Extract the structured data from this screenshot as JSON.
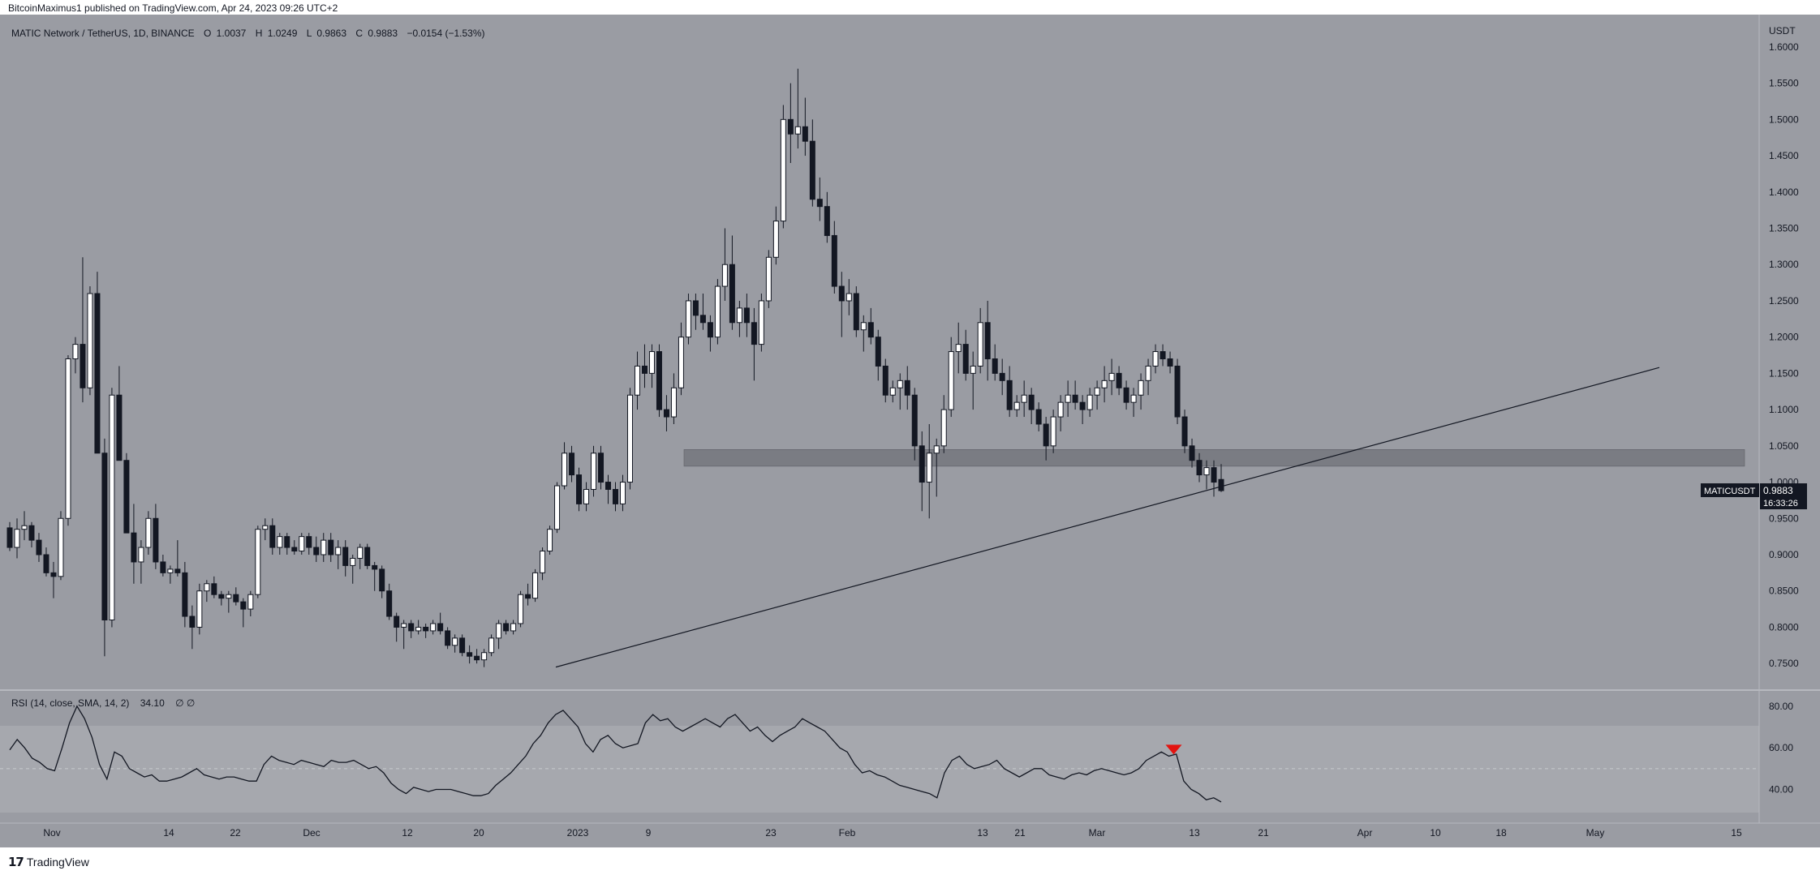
{
  "publisher": "BitcoinMaximus1 published on TradingView.com, Apr 24, 2023 09:26 UTC+2",
  "footer_brand": "TradingView",
  "icon": "tradingview-logo-icon",
  "colors": {
    "background": "#9a9ca3",
    "bull_body": "#ffffff",
    "bear_body": "#131722",
    "wick": "#131722",
    "rsi_band": "#a6a8ae",
    "support_zone": "#6f7178",
    "rsi_marker": "#e3130f"
  },
  "price_header": {
    "symbol_name": "MATIC Network / TetherUS, 1D, BINANCE",
    "o_label": "O",
    "o_value": "1.0037",
    "h_label": "H",
    "h_value": "1.0249",
    "l_label": "L",
    "l_value": "0.9863",
    "c_label": "C",
    "c_value": "0.9883",
    "change": "−0.0154 (−1.53%)"
  },
  "rsi_header": {
    "label": "RSI (14, close, SMA, 14, 2)",
    "value": "34.10",
    "extra": "∅  ∅"
  },
  "price_tag": {
    "symbol": "MATICUSDT",
    "price": "0.9883",
    "countdown": "16:33:26"
  },
  "chart_data": [
    {
      "type": "candlestick",
      "currency": "USDT",
      "ylim": [
        0.72,
        1.62
      ],
      "y_ticks": [
        "1.6000",
        "1.5500",
        "1.5000",
        "1.4500",
        "1.4000",
        "1.3500",
        "1.3000",
        "1.2500",
        "1.2000",
        "1.1500",
        "1.1000",
        "1.0500",
        "1.0000",
        "0.9500",
        "0.9000",
        "0.8500",
        "0.8000",
        "0.7500"
      ],
      "x_ticks": [
        "Nov",
        "14",
        "22",
        "Dec",
        "12",
        "20",
        "2023",
        "9",
        "23",
        "Feb",
        "13",
        "21",
        "Mar",
        "13",
        "21",
        "Apr",
        "10",
        "18",
        "May",
        "15"
      ],
      "support_zone": [
        1.022,
        1.045
      ],
      "trendline": {
        "from": [
          0,
          0.745
        ],
        "to": [
          1,
          1.158
        ]
      },
      "ohlc": [
        [
          0.937,
          0.945,
          0.905,
          0.91
        ],
        [
          0.91,
          0.95,
          0.895,
          0.935
        ],
        [
          0.935,
          0.96,
          0.92,
          0.94
        ],
        [
          0.94,
          0.945,
          0.91,
          0.92
        ],
        [
          0.92,
          0.93,
          0.89,
          0.9
        ],
        [
          0.9,
          0.91,
          0.87,
          0.875
        ],
        [
          0.875,
          0.89,
          0.84,
          0.87
        ],
        [
          0.87,
          0.96,
          0.865,
          0.95
        ],
        [
          0.95,
          1.175,
          0.94,
          1.17
        ],
        [
          1.17,
          1.2,
          1.15,
          1.19
        ],
        [
          1.19,
          1.31,
          1.11,
          1.13
        ],
        [
          1.13,
          1.27,
          1.12,
          1.26
        ],
        [
          1.26,
          1.29,
          1.04,
          1.04
        ],
        [
          1.04,
          1.06,
          0.76,
          0.81
        ],
        [
          0.81,
          1.13,
          0.8,
          1.12
        ],
        [
          1.12,
          1.16,
          1.03,
          1.03
        ],
        [
          1.03,
          1.04,
          0.93,
          0.93
        ],
        [
          0.93,
          0.97,
          0.86,
          0.89
        ],
        [
          0.89,
          0.92,
          0.86,
          0.91
        ],
        [
          0.91,
          0.96,
          0.9,
          0.95
        ],
        [
          0.95,
          0.97,
          0.88,
          0.89
        ],
        [
          0.89,
          0.9,
          0.87,
          0.875
        ],
        [
          0.875,
          0.885,
          0.86,
          0.88
        ],
        [
          0.88,
          0.92,
          0.87,
          0.875
        ],
        [
          0.875,
          0.89,
          0.8,
          0.815
        ],
        [
          0.815,
          0.83,
          0.77,
          0.8
        ],
        [
          0.8,
          0.86,
          0.79,
          0.85
        ],
        [
          0.85,
          0.865,
          0.835,
          0.86
        ],
        [
          0.86,
          0.87,
          0.84,
          0.845
        ],
        [
          0.845,
          0.85,
          0.83,
          0.84
        ],
        [
          0.84,
          0.85,
          0.82,
          0.845
        ],
        [
          0.845,
          0.855,
          0.83,
          0.835
        ],
        [
          0.835,
          0.84,
          0.8,
          0.825
        ],
        [
          0.825,
          0.85,
          0.815,
          0.845
        ],
        [
          0.845,
          0.94,
          0.84,
          0.935
        ],
        [
          0.935,
          0.95,
          0.92,
          0.94
        ],
        [
          0.94,
          0.95,
          0.9,
          0.91
        ],
        [
          0.91,
          0.93,
          0.9,
          0.925
        ],
        [
          0.925,
          0.93,
          0.9,
          0.91
        ],
        [
          0.91,
          0.92,
          0.9,
          0.905
        ],
        [
          0.905,
          0.93,
          0.9,
          0.925
        ],
        [
          0.925,
          0.93,
          0.9,
          0.91
        ],
        [
          0.91,
          0.925,
          0.89,
          0.9
        ],
        [
          0.9,
          0.93,
          0.89,
          0.92
        ],
        [
          0.92,
          0.93,
          0.89,
          0.9
        ],
        [
          0.9,
          0.92,
          0.88,
          0.91
        ],
        [
          0.91,
          0.92,
          0.87,
          0.885
        ],
        [
          0.885,
          0.9,
          0.86,
          0.895
        ],
        [
          0.895,
          0.915,
          0.88,
          0.91
        ],
        [
          0.91,
          0.915,
          0.88,
          0.885
        ],
        [
          0.885,
          0.89,
          0.85,
          0.88
        ],
        [
          0.88,
          0.885,
          0.84,
          0.85
        ],
        [
          0.85,
          0.86,
          0.81,
          0.815
        ],
        [
          0.815,
          0.82,
          0.78,
          0.8
        ],
        [
          0.8,
          0.81,
          0.77,
          0.805
        ],
        [
          0.805,
          0.81,
          0.785,
          0.795
        ],
        [
          0.795,
          0.81,
          0.79,
          0.8
        ],
        [
          0.8,
          0.805,
          0.785,
          0.795
        ],
        [
          0.795,
          0.81,
          0.79,
          0.805
        ],
        [
          0.805,
          0.82,
          0.79,
          0.795
        ],
        [
          0.795,
          0.8,
          0.77,
          0.775
        ],
        [
          0.775,
          0.79,
          0.765,
          0.785
        ],
        [
          0.785,
          0.79,
          0.76,
          0.765
        ],
        [
          0.765,
          0.775,
          0.75,
          0.76
        ],
        [
          0.76,
          0.77,
          0.75,
          0.755
        ],
        [
          0.755,
          0.77,
          0.745,
          0.765
        ],
        [
          0.765,
          0.79,
          0.76,
          0.785
        ],
        [
          0.785,
          0.81,
          0.77,
          0.805
        ],
        [
          0.805,
          0.81,
          0.79,
          0.795
        ],
        [
          0.795,
          0.81,
          0.79,
          0.805
        ],
        [
          0.805,
          0.85,
          0.8,
          0.845
        ],
        [
          0.845,
          0.86,
          0.83,
          0.84
        ],
        [
          0.84,
          0.88,
          0.835,
          0.875
        ],
        [
          0.875,
          0.91,
          0.865,
          0.905
        ],
        [
          0.905,
          0.94,
          0.9,
          0.935
        ],
        [
          0.935,
          1.0,
          0.93,
          0.995
        ],
        [
          0.995,
          1.055,
          0.99,
          1.04
        ],
        [
          1.04,
          1.05,
          1.0,
          1.01
        ],
        [
          1.01,
          1.02,
          0.96,
          0.97
        ],
        [
          0.97,
          1.0,
          0.96,
          0.99
        ],
        [
          0.99,
          1.05,
          0.98,
          1.04
        ],
        [
          1.04,
          1.05,
          0.99,
          1.0
        ],
        [
          1.0,
          1.01,
          0.97,
          0.99
        ],
        [
          0.99,
          1.0,
          0.96,
          0.97
        ],
        [
          0.97,
          1.01,
          0.96,
          1.0
        ],
        [
          1.0,
          1.13,
          0.99,
          1.12
        ],
        [
          1.12,
          1.18,
          1.1,
          1.16
        ],
        [
          1.16,
          1.19,
          1.13,
          1.15
        ],
        [
          1.15,
          1.19,
          1.13,
          1.18
        ],
        [
          1.18,
          1.19,
          1.09,
          1.1
        ],
        [
          1.1,
          1.12,
          1.07,
          1.09
        ],
        [
          1.09,
          1.15,
          1.08,
          1.13
        ],
        [
          1.13,
          1.22,
          1.12,
          1.2
        ],
        [
          1.2,
          1.26,
          1.19,
          1.25
        ],
        [
          1.25,
          1.26,
          1.21,
          1.23
        ],
        [
          1.23,
          1.26,
          1.21,
          1.22
        ],
        [
          1.22,
          1.23,
          1.18,
          1.2
        ],
        [
          1.2,
          1.28,
          1.19,
          1.27
        ],
        [
          1.27,
          1.35,
          1.25,
          1.3
        ],
        [
          1.3,
          1.34,
          1.21,
          1.22
        ],
        [
          1.22,
          1.25,
          1.2,
          1.24
        ],
        [
          1.24,
          1.26,
          1.2,
          1.22
        ],
        [
          1.22,
          1.24,
          1.14,
          1.19
        ],
        [
          1.19,
          1.26,
          1.18,
          1.25
        ],
        [
          1.25,
          1.32,
          1.24,
          1.31
        ],
        [
          1.31,
          1.38,
          1.3,
          1.36
        ],
        [
          1.36,
          1.52,
          1.35,
          1.5
        ],
        [
          1.5,
          1.55,
          1.44,
          1.48
        ],
        [
          1.48,
          1.57,
          1.46,
          1.49
        ],
        [
          1.49,
          1.53,
          1.45,
          1.47
        ],
        [
          1.47,
          1.5,
          1.38,
          1.39
        ],
        [
          1.39,
          1.42,
          1.36,
          1.38
        ],
        [
          1.38,
          1.4,
          1.33,
          1.34
        ],
        [
          1.34,
          1.36,
          1.26,
          1.27
        ],
        [
          1.27,
          1.29,
          1.2,
          1.25
        ],
        [
          1.25,
          1.28,
          1.23,
          1.26
        ],
        [
          1.26,
          1.27,
          1.2,
          1.21
        ],
        [
          1.21,
          1.23,
          1.18,
          1.22
        ],
        [
          1.22,
          1.24,
          1.19,
          1.2
        ],
        [
          1.2,
          1.21,
          1.14,
          1.16
        ],
        [
          1.16,
          1.17,
          1.11,
          1.12
        ],
        [
          1.12,
          1.14,
          1.11,
          1.13
        ],
        [
          1.13,
          1.15,
          1.1,
          1.14
        ],
        [
          1.14,
          1.16,
          1.1,
          1.12
        ],
        [
          1.12,
          1.13,
          1.03,
          1.05
        ],
        [
          1.05,
          1.07,
          0.96,
          1.0
        ],
        [
          1.0,
          1.08,
          0.95,
          1.04
        ],
        [
          1.04,
          1.06,
          0.98,
          1.05
        ],
        [
          1.05,
          1.12,
          1.04,
          1.1
        ],
        [
          1.1,
          1.2,
          1.09,
          1.18
        ],
        [
          1.18,
          1.22,
          1.15,
          1.19
        ],
        [
          1.19,
          1.21,
          1.14,
          1.15
        ],
        [
          1.15,
          1.18,
          1.1,
          1.16
        ],
        [
          1.16,
          1.24,
          1.15,
          1.22
        ],
        [
          1.22,
          1.25,
          1.14,
          1.17
        ],
        [
          1.17,
          1.19,
          1.14,
          1.15
        ],
        [
          1.15,
          1.17,
          1.12,
          1.14
        ],
        [
          1.14,
          1.16,
          1.09,
          1.1
        ],
        [
          1.1,
          1.12,
          1.09,
          1.11
        ],
        [
          1.11,
          1.14,
          1.09,
          1.12
        ],
        [
          1.12,
          1.13,
          1.08,
          1.1
        ],
        [
          1.1,
          1.11,
          1.07,
          1.08
        ],
        [
          1.08,
          1.09,
          1.03,
          1.05
        ],
        [
          1.05,
          1.1,
          1.04,
          1.09
        ],
        [
          1.09,
          1.12,
          1.07,
          1.11
        ],
        [
          1.11,
          1.14,
          1.09,
          1.12
        ],
        [
          1.12,
          1.14,
          1.1,
          1.11
        ],
        [
          1.11,
          1.12,
          1.08,
          1.1
        ],
        [
          1.1,
          1.13,
          1.09,
          1.12
        ],
        [
          1.12,
          1.14,
          1.1,
          1.13
        ],
        [
          1.13,
          1.16,
          1.11,
          1.14
        ],
        [
          1.14,
          1.17,
          1.12,
          1.15
        ],
        [
          1.15,
          1.16,
          1.12,
          1.13
        ],
        [
          1.13,
          1.14,
          1.1,
          1.11
        ],
        [
          1.11,
          1.13,
          1.09,
          1.12
        ],
        [
          1.12,
          1.15,
          1.1,
          1.14
        ],
        [
          1.14,
          1.17,
          1.12,
          1.16
        ],
        [
          1.16,
          1.19,
          1.15,
          1.18
        ],
        [
          1.18,
          1.19,
          1.16,
          1.17
        ],
        [
          1.17,
          1.18,
          1.15,
          1.16
        ],
        [
          1.16,
          1.17,
          1.08,
          1.09
        ],
        [
          1.09,
          1.1,
          1.04,
          1.05
        ],
        [
          1.05,
          1.06,
          1.02,
          1.03
        ],
        [
          1.03,
          1.04,
          1.0,
          1.01
        ],
        [
          1.01,
          1.03,
          0.99,
          1.02
        ],
        [
          1.02,
          1.03,
          0.98,
          1.0
        ],
        [
          1.0037,
          1.0249,
          0.9863,
          0.9883
        ]
      ]
    },
    {
      "type": "line",
      "name": "RSI (14, close, SMA, 14, 2)",
      "ylim": [
        25,
        85
      ],
      "y_ticks": [
        "80.00",
        "60.00",
        "40.00"
      ],
      "band": [
        30,
        70
      ],
      "midline": 50,
      "marker_at": 0.954,
      "values": [
        59,
        64,
        60,
        55,
        53,
        50,
        49,
        60,
        72,
        80,
        74,
        65,
        52,
        45,
        58,
        56,
        50,
        48,
        46,
        47,
        44,
        44,
        45,
        46,
        48,
        50,
        47,
        46,
        45,
        46,
        46,
        45,
        44,
        44,
        52,
        56,
        54,
        53,
        52,
        54,
        53,
        52,
        51,
        54,
        53,
        53,
        54,
        52,
        50,
        51,
        48,
        43,
        40,
        38,
        41,
        40,
        39,
        40,
        40,
        40,
        39,
        38,
        37,
        37,
        38,
        42,
        45,
        48,
        52,
        56,
        62,
        66,
        72,
        76,
        78,
        74,
        70,
        62,
        58,
        64,
        66,
        62,
        60,
        61,
        62,
        72,
        76,
        73,
        74,
        70,
        68,
        70,
        72,
        74,
        72,
        70,
        74,
        76,
        72,
        68,
        70,
        66,
        63,
        66,
        68,
        70,
        74,
        72,
        70,
        68,
        64,
        60,
        58,
        52,
        48,
        49,
        47,
        46,
        44,
        42,
        41,
        40,
        39,
        38,
        36,
        48,
        54,
        56,
        52,
        50,
        51,
        52,
        54,
        50,
        48,
        46,
        48,
        50,
        50,
        47,
        46,
        45,
        47,
        48,
        47,
        49,
        50,
        49,
        48,
        47,
        48,
        50,
        54,
        56,
        58,
        56,
        57,
        44,
        40,
        38,
        35,
        36,
        34
      ]
    }
  ]
}
